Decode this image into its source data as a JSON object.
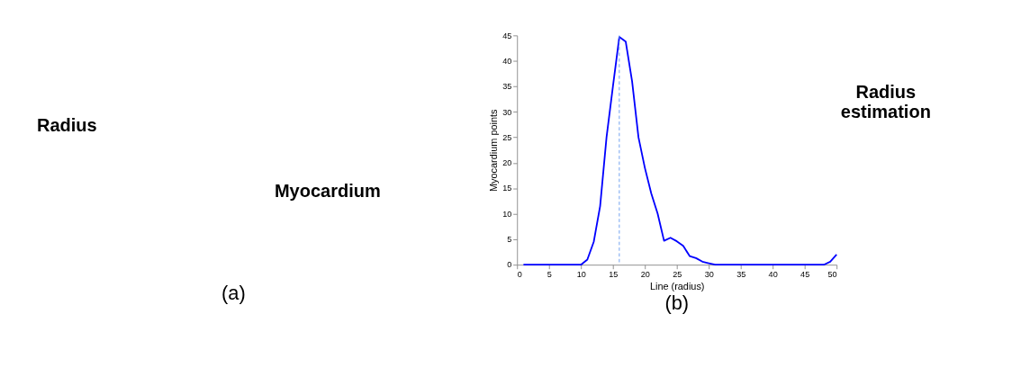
{
  "chart_data": [
    {
      "type": "other",
      "title": "(a)",
      "annotations": [
        "Radius",
        "Myocardium"
      ]
    },
    {
      "type": "line",
      "title": "(b)",
      "xlabel": "Line (radius)",
      "ylabel": "Myocardium points",
      "x": [
        1,
        2,
        3,
        4,
        5,
        6,
        7,
        8,
        9,
        10,
        11,
        12,
        13,
        14,
        15,
        16,
        17,
        18,
        19,
        20,
        21,
        22,
        23,
        24,
        25,
        26,
        27,
        28,
        29,
        30,
        31,
        32,
        33,
        34,
        35,
        36,
        37,
        38,
        39,
        40,
        41,
        42,
        43,
        44,
        45,
        46,
        47,
        48,
        49,
        50
      ],
      "series": [
        {
          "color": "#0000ff",
          "values": [
            0,
            0,
            0,
            0,
            0,
            0,
            0,
            0,
            0,
            0,
            1,
            4.5,
            11.5,
            25,
            35,
            44.7,
            43.8,
            36,
            25,
            19,
            14,
            10,
            4.7,
            5.3,
            4.6,
            3.7,
            1.7,
            1.3,
            0.6,
            0.3,
            0,
            0,
            0,
            0,
            0,
            0,
            0,
            0,
            0,
            0,
            0,
            0,
            0,
            0,
            0,
            0,
            0,
            0,
            0.6,
            2
          ]
        }
      ],
      "xlim": [
        0,
        50
      ],
      "xticks": [
        0,
        5,
        10,
        15,
        20,
        25,
        30,
        35,
        40,
        45,
        50
      ],
      "ylim": [
        0,
        45
      ],
      "yticks": [
        0,
        5,
        10,
        15,
        20,
        25,
        30,
        35,
        40,
        45
      ],
      "grid": false,
      "marker": "none",
      "line_style": "solid",
      "ref_lines": [
        {
          "axis": "x",
          "value": 16,
          "color": "#6699ee",
          "line_style": "dashed"
        }
      ],
      "annotations": [
        "Radius estimation"
      ]
    }
  ]
}
